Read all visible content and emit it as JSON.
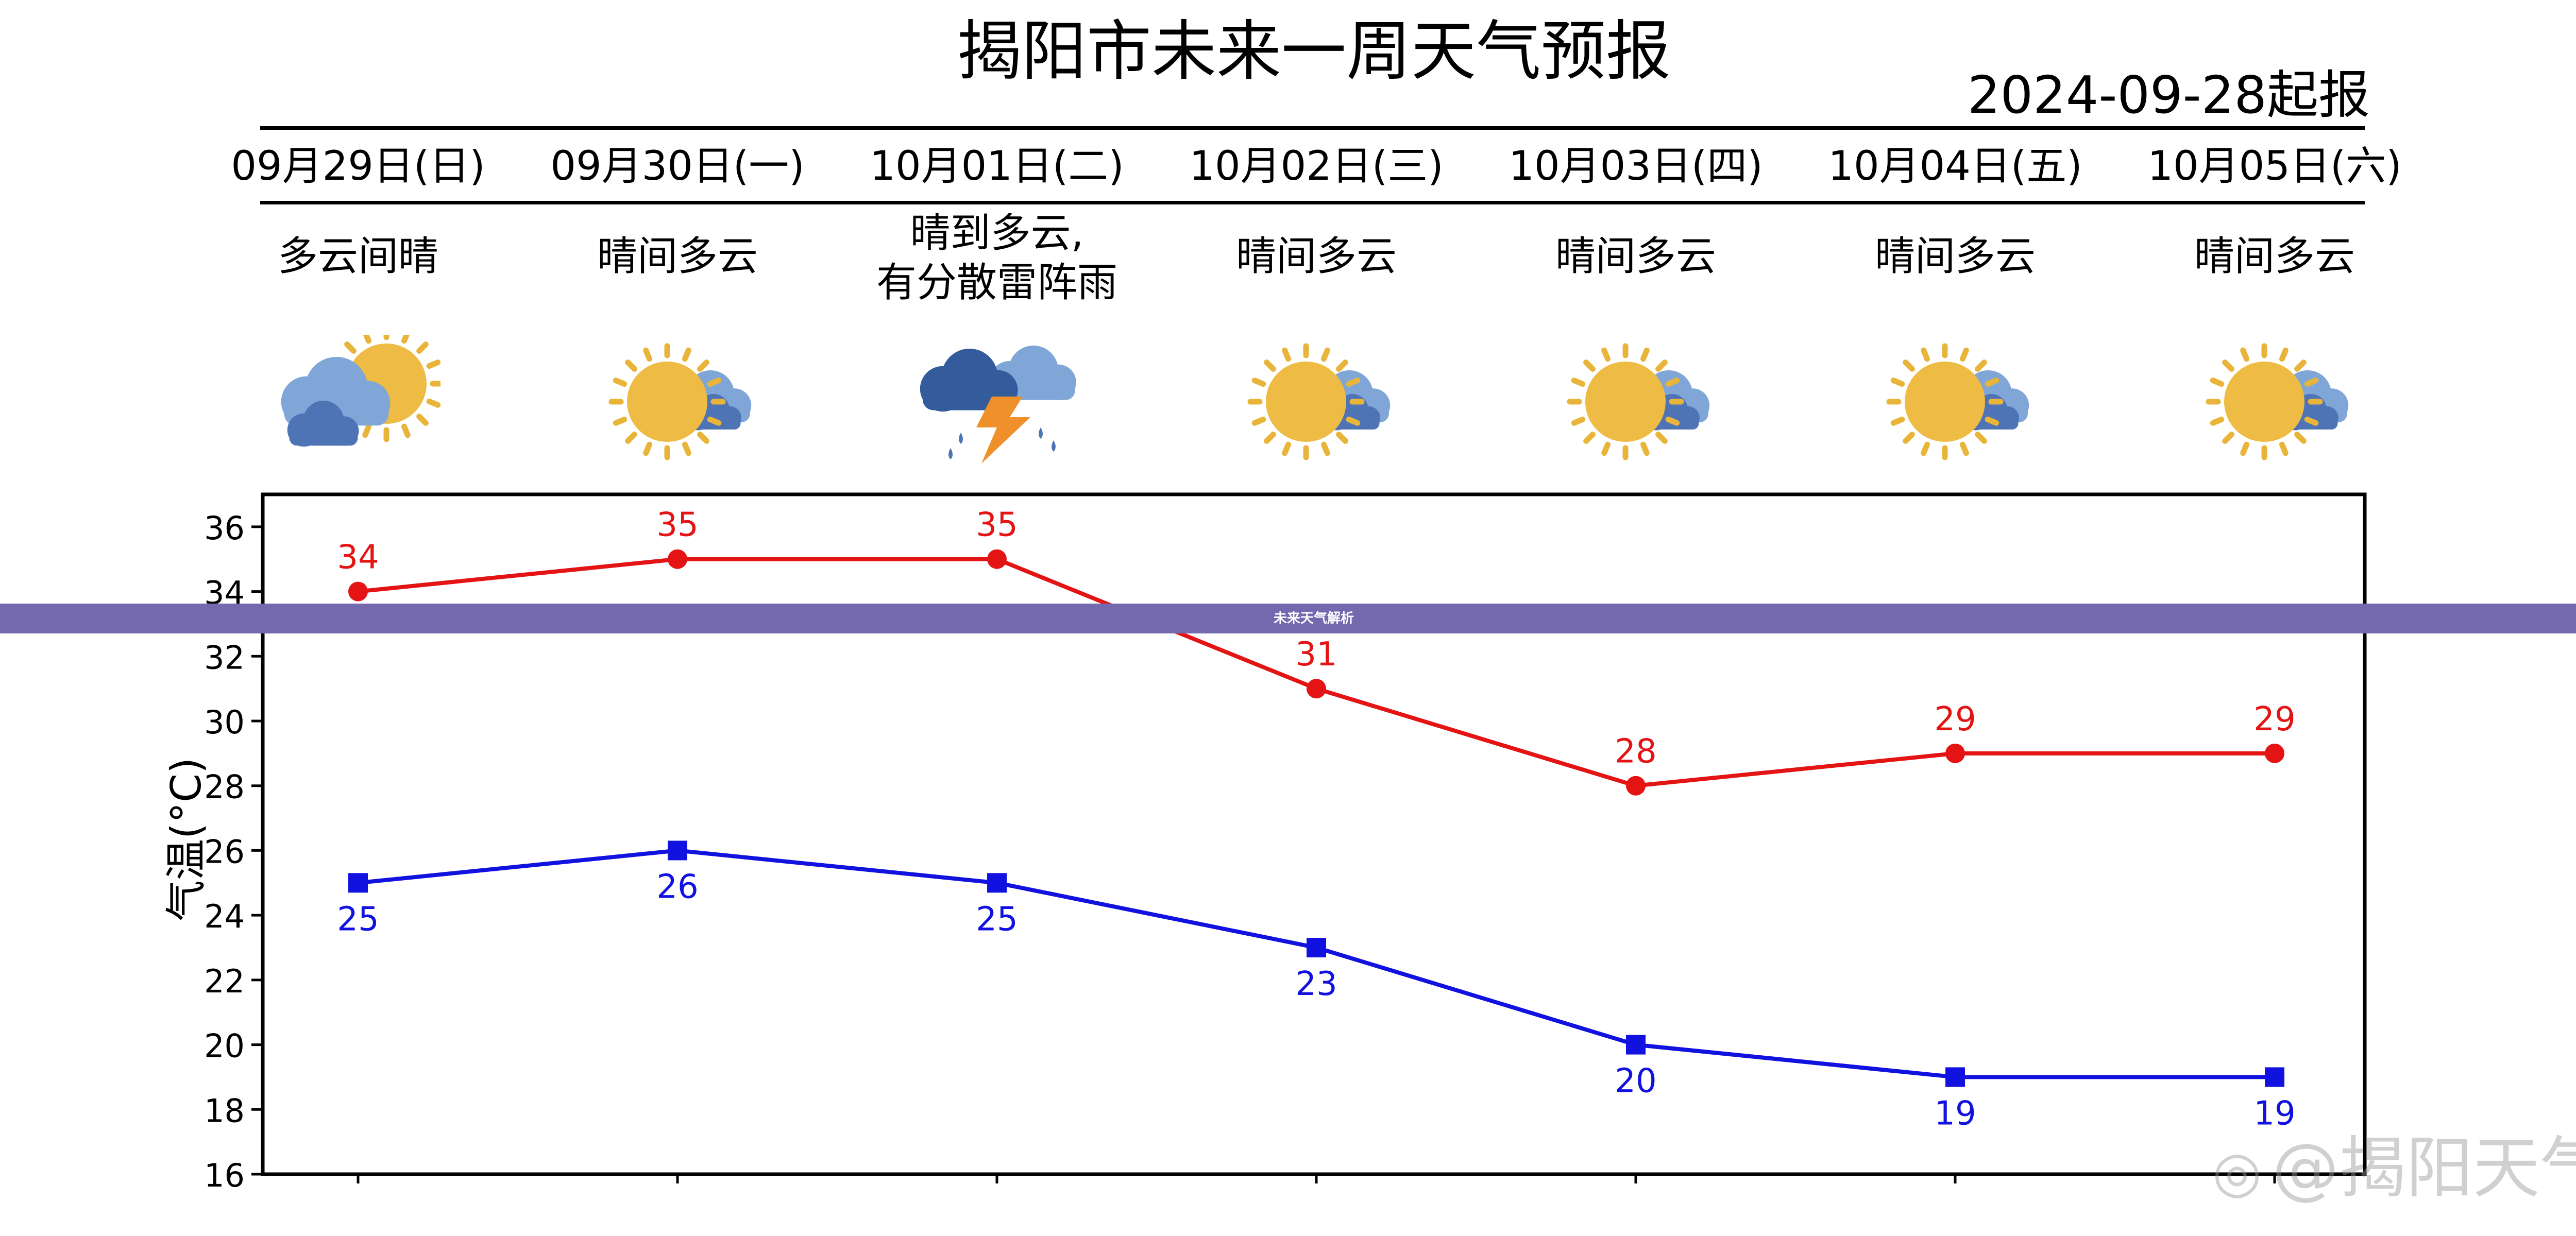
{
  "header": {
    "title": "揭阳市未来一周天气预报",
    "issued": "2024-09-28起报"
  },
  "days": [
    {
      "date": "09月29日(日)",
      "condition": "多云间晴",
      "icon": "cloud-sun-icon"
    },
    {
      "date": "09月30日(一)",
      "condition": "晴间多云",
      "icon": "sun-cloud-icon"
    },
    {
      "date": "10月01日(二)",
      "condition": "晴到多云,\n有分散雷阵雨",
      "icon": "thunderstorm-icon"
    },
    {
      "date": "10月02日(三)",
      "condition": "晴间多云",
      "icon": "sun-cloud-icon"
    },
    {
      "date": "10月03日(四)",
      "condition": "晴间多云",
      "icon": "sun-cloud-icon"
    },
    {
      "date": "10月04日(五)",
      "condition": "晴间多云",
      "icon": "sun-cloud-icon"
    },
    {
      "date": "10月05日(六)",
      "condition": "晴间多云",
      "icon": "sun-cloud-icon"
    }
  ],
  "overlay_band": {
    "text": "未来天气解析"
  },
  "watermark": {
    "text": "@揭阳天气"
  },
  "colors": {
    "high": "#e41414",
    "low": "#1212e0",
    "sun": "#eebb44",
    "sun_ray": "#e8b53a",
    "cloud_light": "#7fa6d6",
    "cloud_dark": "#4f74b6",
    "storm_cloud": "#345c9c",
    "bolt": "#f0902a",
    "band": "#7468ae"
  },
  "chart_data": {
    "type": "line",
    "x": [
      "09月29日(日)",
      "09月30日(一)",
      "10月01日(二)",
      "10月02日(三)",
      "10月03日(四)",
      "10月04日(五)",
      "10月05日(六)"
    ],
    "series": [
      {
        "values": [
          34,
          35,
          35,
          31,
          28,
          29,
          29
        ],
        "marker": "circle",
        "color": "#e41414"
      },
      {
        "values": [
          25,
          26,
          25,
          23,
          20,
          19,
          19
        ],
        "marker": "square",
        "color": "#1212e0"
      }
    ],
    "ylabel": "气温(°C)",
    "ylim": [
      16,
      37
    ],
    "yticks": [
      16,
      18,
      20,
      22,
      24,
      26,
      28,
      30,
      32,
      34,
      36
    ],
    "grid": false,
    "data_labels": true
  }
}
